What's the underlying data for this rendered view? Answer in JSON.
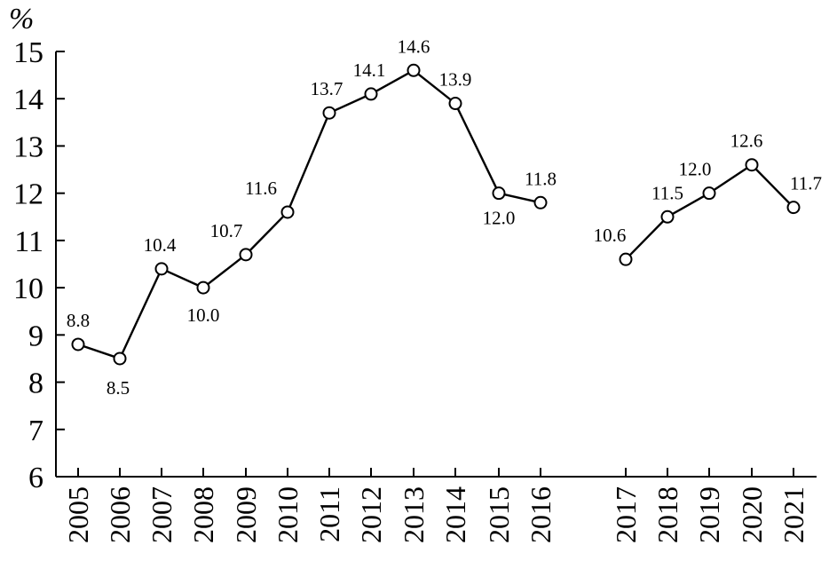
{
  "chart_data": {
    "type": "line",
    "unit_label": "%",
    "ylim": [
      6,
      15
    ],
    "y_ticks": [
      "6",
      "7",
      "8",
      "9",
      "10",
      "11",
      "12",
      "13",
      "14",
      "15"
    ],
    "categories": [
      "2005",
      "2006",
      "2007",
      "2008",
      "2009",
      "2010",
      "2011",
      "2012",
      "2013",
      "2014",
      "2015",
      "2016",
      "2017",
      "2018",
      "2019",
      "2020",
      "2021"
    ],
    "series": [
      {
        "x": [
          "2005",
          "2006",
          "2007",
          "2008",
          "2009",
          "2010",
          "2011",
          "2012",
          "2013",
          "2014",
          "2015",
          "2016"
        ],
        "values": [
          8.8,
          8.5,
          10.4,
          10.0,
          10.7,
          11.6,
          13.7,
          14.1,
          14.6,
          13.9,
          12.0,
          11.8
        ],
        "labels": [
          "8.8",
          "8.5",
          "10.4",
          "10.0",
          "10.7",
          "11.6",
          "13.7",
          "14.1",
          "14.6",
          "13.9",
          "12.0",
          "11.8"
        ]
      },
      {
        "x": [
          "2017",
          "2018",
          "2019",
          "2020",
          "2021"
        ],
        "values": [
          10.6,
          11.5,
          12.0,
          12.6,
          11.7
        ],
        "labels": [
          "10.6",
          "11.5",
          "12.0",
          "12.6",
          "11.7"
        ]
      }
    ],
    "grid": false,
    "line_color": "#000000",
    "marker_fill": "#ffffff"
  }
}
